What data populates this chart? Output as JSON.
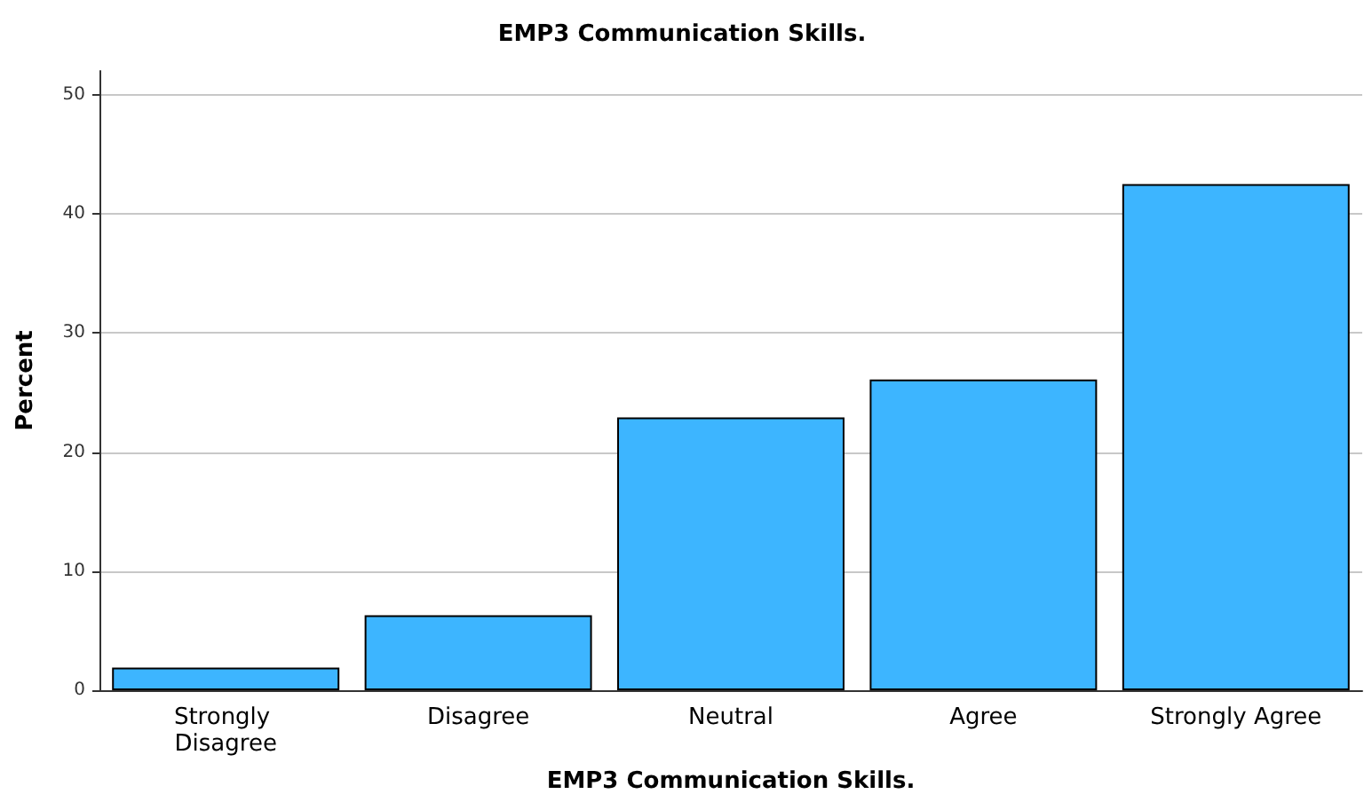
{
  "chart_data": {
    "type": "bar",
    "title": "EMP3 Communication Skills.",
    "xlabel": "EMP3 Communication Skills.",
    "ylabel": "Percent",
    "categories": [
      "Strongly Disagree",
      "Disagree",
      "Neutral",
      "Agree",
      "Strongly Agree"
    ],
    "values": [
      1.9,
      6.3,
      22.9,
      26.1,
      42.5
    ],
    "color": "#3db5ff",
    "ylim": [
      0,
      52
    ],
    "yticks": [
      0,
      10,
      20,
      30,
      40,
      50
    ],
    "grid": "y"
  }
}
